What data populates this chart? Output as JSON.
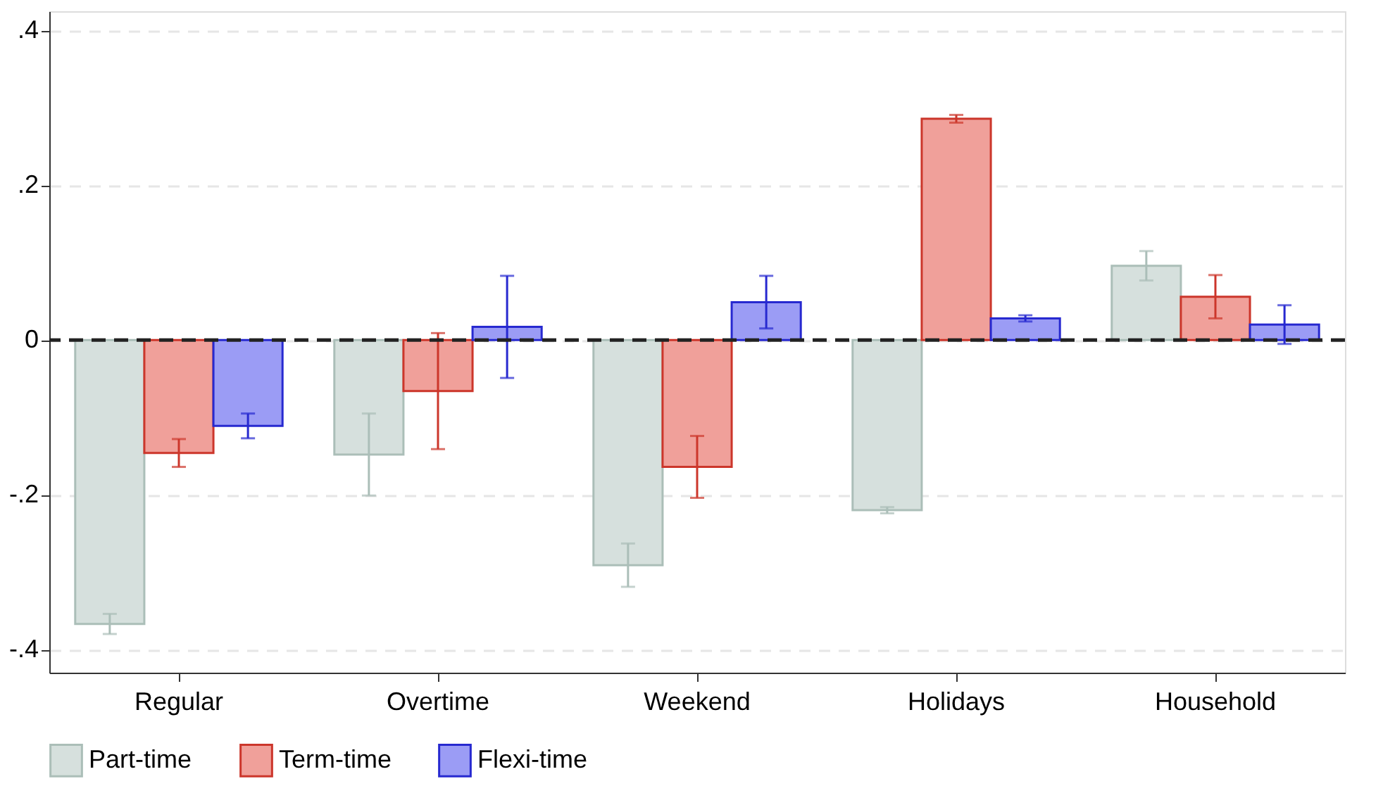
{
  "chart_data": {
    "type": "bar",
    "categories": [
      "Regular",
      "Overtime",
      "Weekend",
      "Holidays",
      "Household"
    ],
    "series": [
      {
        "name": "Part-time",
        "color": "#d6e0dd",
        "values": [
          -0.367,
          -0.148,
          -0.291,
          -0.22,
          0.096
        ],
        "errors": [
          0.013,
          0.053,
          0.028,
          0.004,
          0.019
        ]
      },
      {
        "name": "Term-time",
        "color": "#f0a09a",
        "values": [
          -0.146,
          -0.066,
          -0.164,
          0.286,
          0.056
        ],
        "errors": [
          0.018,
          0.075,
          0.04,
          0.005,
          0.028
        ]
      },
      {
        "name": "Flexi-time",
        "color": "#9b9cf5",
        "values": [
          -0.111,
          0.017,
          0.049,
          0.028,
          0.02
        ],
        "errors": [
          0.016,
          0.066,
          0.034,
          0.004,
          0.025
        ]
      }
    ],
    "ylim": [
      -0.43,
      0.425
    ],
    "yticks": [
      {
        "value": -0.4,
        "label": "-.4"
      },
      {
        "value": -0.2,
        "label": "-.2"
      },
      0,
      {
        "value": 0.2,
        "label": ".2"
      },
      {
        "value": 0.4,
        "label": ".4"
      }
    ],
    "grid": "y",
    "ref_lines": [
      {
        "axis": "y",
        "value": 0,
        "color": "#222222",
        "line_style": "dashed"
      }
    ],
    "legend": "bottom"
  }
}
